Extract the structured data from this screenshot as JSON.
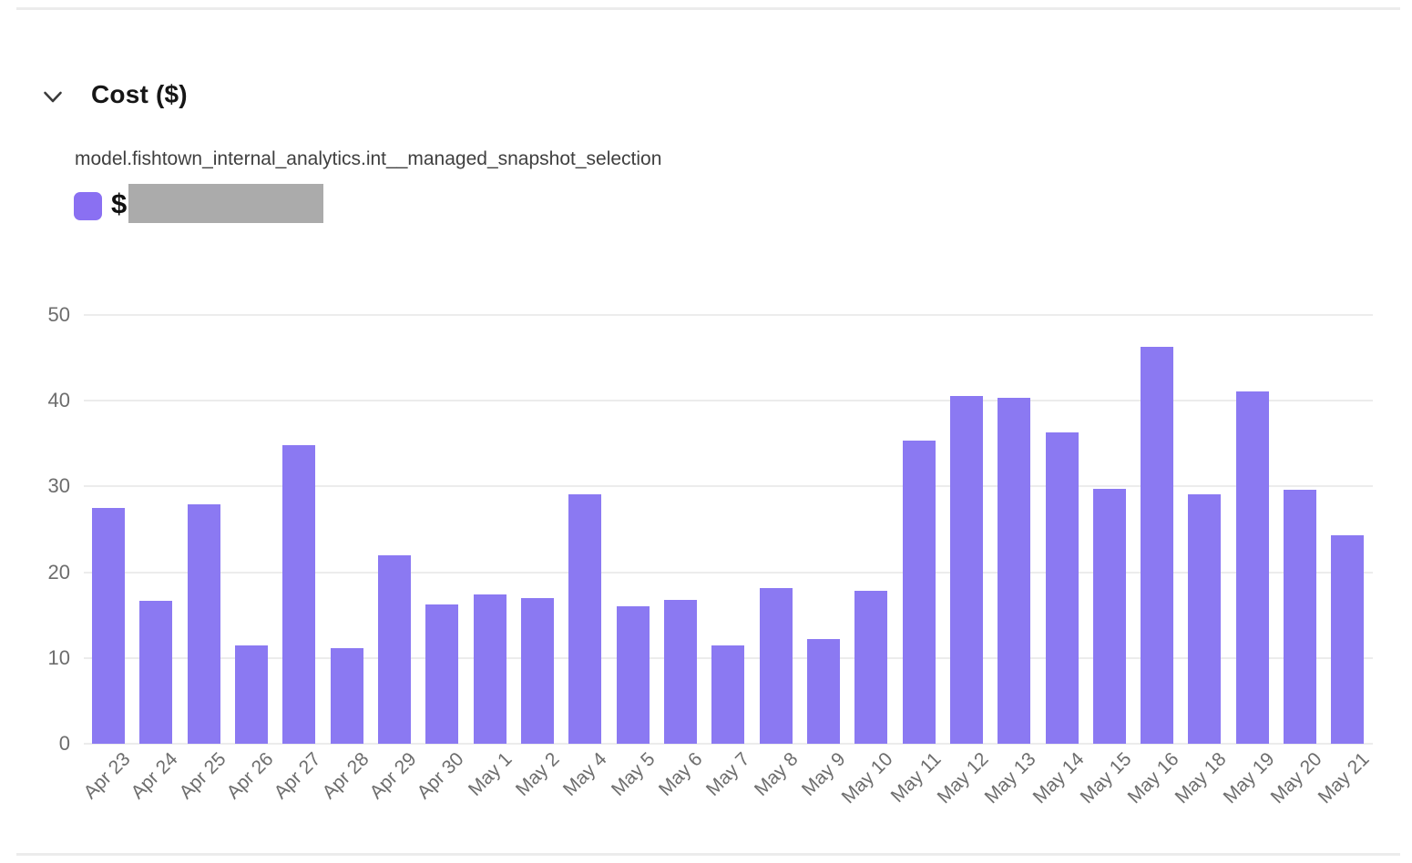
{
  "header": {
    "title": "Cost ($)"
  },
  "legend": {
    "series_name": "model.fishtown_internal_analytics.int__managed_snapshot_selection",
    "value_prefix": "$",
    "value_redacted": true,
    "swatch_color": "#8a70f2",
    "redaction_color": "#ababab"
  },
  "chart_data": {
    "type": "bar",
    "title": "Cost ($)",
    "series_name": "model.fishtown_internal_analytics.int__managed_snapshot_selection",
    "categories": [
      "Apr 23",
      "Apr 24",
      "Apr 25",
      "Apr 26",
      "Apr 27",
      "Apr 28",
      "Apr 29",
      "Apr 30",
      "May 1",
      "May 2",
      "May 4",
      "May 5",
      "May 6",
      "May 7",
      "May 8",
      "May 9",
      "May 10",
      "May 11",
      "May 12",
      "May 13",
      "May 14",
      "May 15",
      "May 16",
      "May 18",
      "May 19",
      "May 20",
      "May 21"
    ],
    "values": [
      27.5,
      16.7,
      27.9,
      11.5,
      34.8,
      11.1,
      22.0,
      16.2,
      17.4,
      17.0,
      29.1,
      16.0,
      16.8,
      11.5,
      18.1,
      12.2,
      17.8,
      35.4,
      40.5,
      40.3,
      36.3,
      29.7,
      46.3,
      29.1,
      41.1,
      29.6,
      24.3
    ],
    "xlabel": "",
    "ylabel": "",
    "ylim": [
      0,
      50
    ],
    "yticks": [
      0,
      10,
      20,
      30,
      40,
      50
    ],
    "grid": true,
    "bar_color": "#8b79f2",
    "gridline_color": "#ececec",
    "tick_label_color": "#6d6d6d",
    "legend_position": "top-left"
  }
}
